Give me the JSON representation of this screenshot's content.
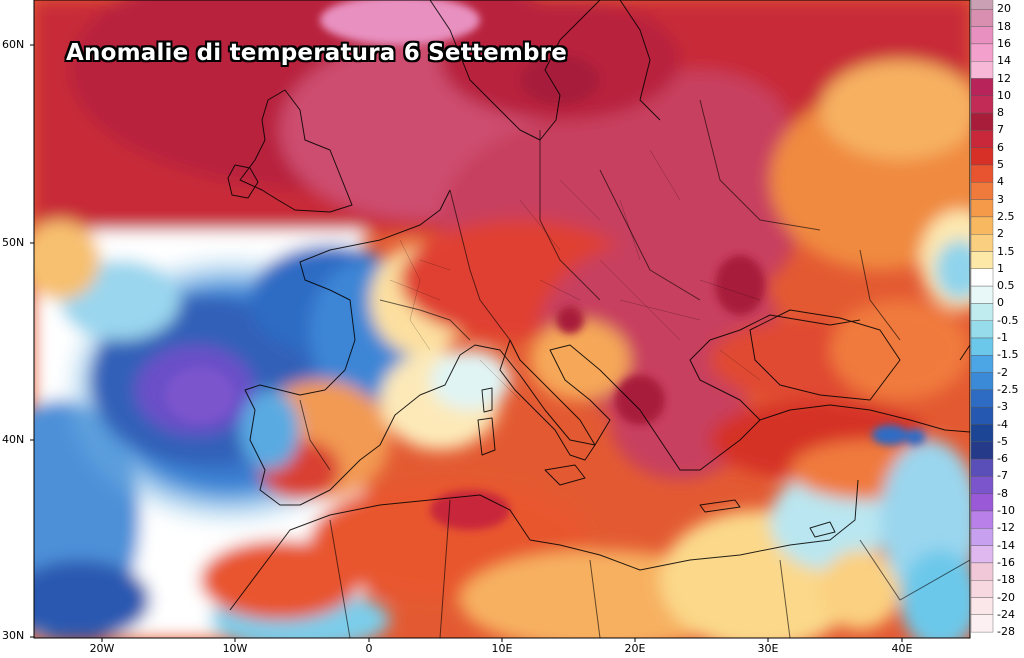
{
  "title": "Anomalie di temperatura 6 Settembre",
  "lat_labels": [
    "60N",
    "50N",
    "40N",
    "30N"
  ],
  "lon_labels": [
    "20W",
    "10W",
    "0",
    "10E",
    "20E",
    "30E",
    "40E"
  ],
  "legend": {
    "levels": [
      "20",
      "18",
      "16",
      "14",
      "12",
      "10",
      "8",
      "7",
      "6",
      "5",
      "4",
      "3",
      "2.5",
      "2",
      "1.5",
      "1",
      "0.5",
      "0",
      "-0.5",
      "-1",
      "-1.5",
      "-2",
      "-2.5",
      "-3",
      "-4",
      "-5",
      "-6",
      "-7",
      "-8",
      "-10",
      "-12",
      "-14",
      "-16",
      "-18",
      "-20",
      "-24",
      "-28"
    ],
    "colors": [
      "#c9a0b4",
      "#d88fb0",
      "#e890c0",
      "#f4a0cc",
      "#f7b8d8",
      "#b8235a",
      "#c22b55",
      "#a81e3a",
      "#c8283a",
      "#d73027",
      "#e8542f",
      "#f07a3c",
      "#f59a48",
      "#f8b860",
      "#fad080",
      "#fde8a8",
      "#ffffff",
      "#e8f8f8",
      "#c0ecf0",
      "#96dceb",
      "#6cc8ea",
      "#4ca6e6",
      "#3a8ad8",
      "#2e6cc4",
      "#2558b0",
      "#1d4596",
      "#263a8a",
      "#5a4fb8",
      "#7a55cc",
      "#9a5ad8",
      "#b880e8",
      "#c8a0f0",
      "#e0b8f0",
      "#f0c8d8",
      "#f7d8e0",
      "#fbe6ea",
      "#fdf0f2"
    ]
  }
}
